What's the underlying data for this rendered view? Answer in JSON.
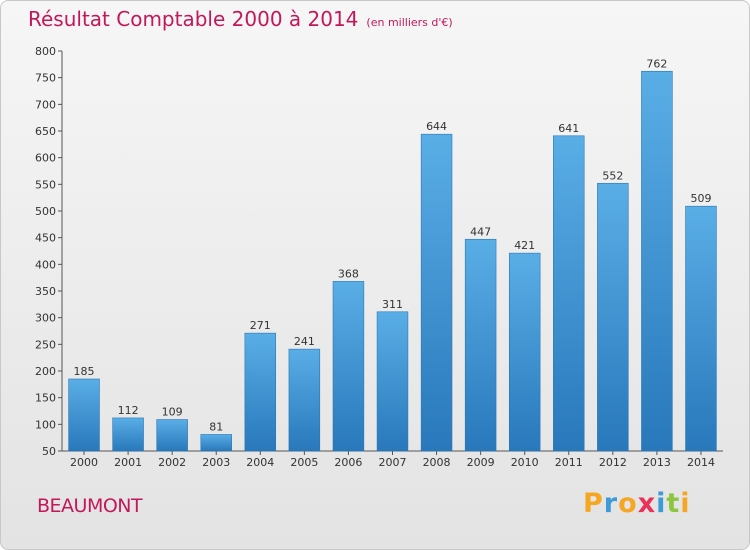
{
  "header": {
    "title": "Résultat Comptable 2000 à 2014",
    "subtitle": "(en milliers d'€)"
  },
  "footer": {
    "town": "BEAUMONT",
    "logo_letters": [
      "P",
      "r",
      "o",
      "x",
      "i",
      "t",
      "i"
    ],
    "logo_colors": [
      "#f5a623",
      "#3b9bd6",
      "#f5a623",
      "#e8325a",
      "#3b9bd6",
      "#8cc63f",
      "#f5a623"
    ]
  },
  "chart_data": {
    "type": "bar",
    "title": "Résultat Comptable 2000 à 2014",
    "subtitle": "(en milliers d'€)",
    "xlabel": "",
    "ylabel": "",
    "categories": [
      "2000",
      "2001",
      "2002",
      "2003",
      "2004",
      "2005",
      "2006",
      "2007",
      "2008",
      "2009",
      "2010",
      "2011",
      "2012",
      "2013",
      "2014"
    ],
    "values": [
      185,
      112,
      109,
      81,
      271,
      241,
      368,
      311,
      644,
      447,
      421,
      641,
      552,
      762,
      509
    ],
    "ylim": [
      50,
      800
    ],
    "yticks": [
      50,
      100,
      150,
      200,
      250,
      300,
      350,
      400,
      450,
      500,
      550,
      600,
      650,
      700,
      750,
      800
    ],
    "grid": false,
    "bar_color": "#3a92d4"
  }
}
